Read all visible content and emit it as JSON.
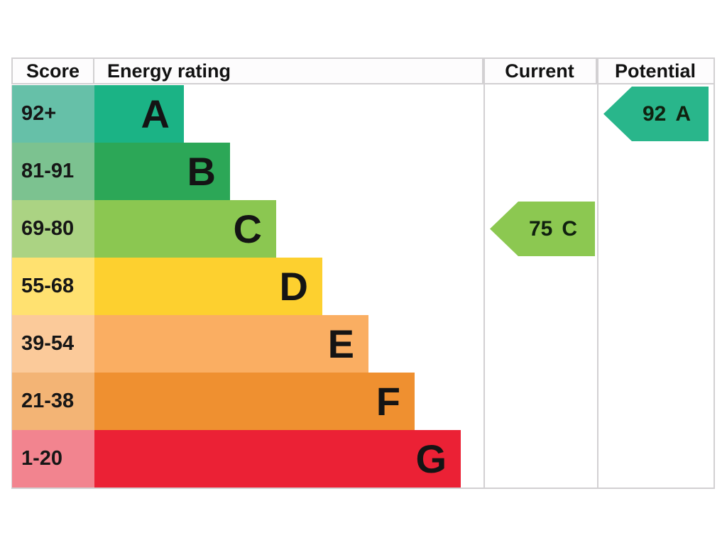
{
  "chart": {
    "headers": {
      "score": "Score",
      "energy_rating": "Energy rating",
      "current": "Current",
      "potential": "Potential"
    },
    "bands": [
      {
        "letter": "A",
        "range": "92+",
        "bar_color": "#1bb385",
        "tint_color": "#66c0a8"
      },
      {
        "letter": "B",
        "range": "81-91",
        "bar_color": "#2ca757",
        "tint_color": "#7cc290"
      },
      {
        "letter": "C",
        "range": "69-80",
        "bar_color": "#8bc751",
        "tint_color": "#abd383"
      },
      {
        "letter": "D",
        "range": "55-68",
        "bar_color": "#fdd02f",
        "tint_color": "#ffe170"
      },
      {
        "letter": "E",
        "range": "39-54",
        "bar_color": "#faae62",
        "tint_color": "#fbca9a"
      },
      {
        "letter": "F",
        "range": "21-38",
        "bar_color": "#ef9030",
        "tint_color": "#f3b475"
      },
      {
        "letter": "G",
        "range": "1-20",
        "bar_color": "#eb2135",
        "tint_color": "#f2848f"
      }
    ],
    "current": {
      "score": "75",
      "band": "C",
      "color": "#8cc851"
    },
    "potential": {
      "score": "92",
      "band": "A",
      "color": "#29b68b"
    }
  },
  "chart_data": {
    "type": "bar",
    "title": "Energy rating",
    "categories": [
      "A",
      "B",
      "C",
      "D",
      "E",
      "F",
      "G"
    ],
    "score_ranges": [
      "92+",
      "81-91",
      "69-80",
      "55-68",
      "39-54",
      "21-38",
      "1-20"
    ],
    "bar_relative_lengths": [
      1,
      2,
      3,
      4,
      5,
      6,
      7
    ],
    "columns": [
      "Score",
      "Energy rating",
      "Current",
      "Potential"
    ],
    "current": {
      "score": 75,
      "rating": "C"
    },
    "potential": {
      "score": 92,
      "rating": "A"
    },
    "band_colors": [
      "#1bb385",
      "#2ca757",
      "#8bc751",
      "#fdd02f",
      "#faae62",
      "#ef9030",
      "#eb2135"
    ],
    "legend_position": "none",
    "grid": false
  }
}
